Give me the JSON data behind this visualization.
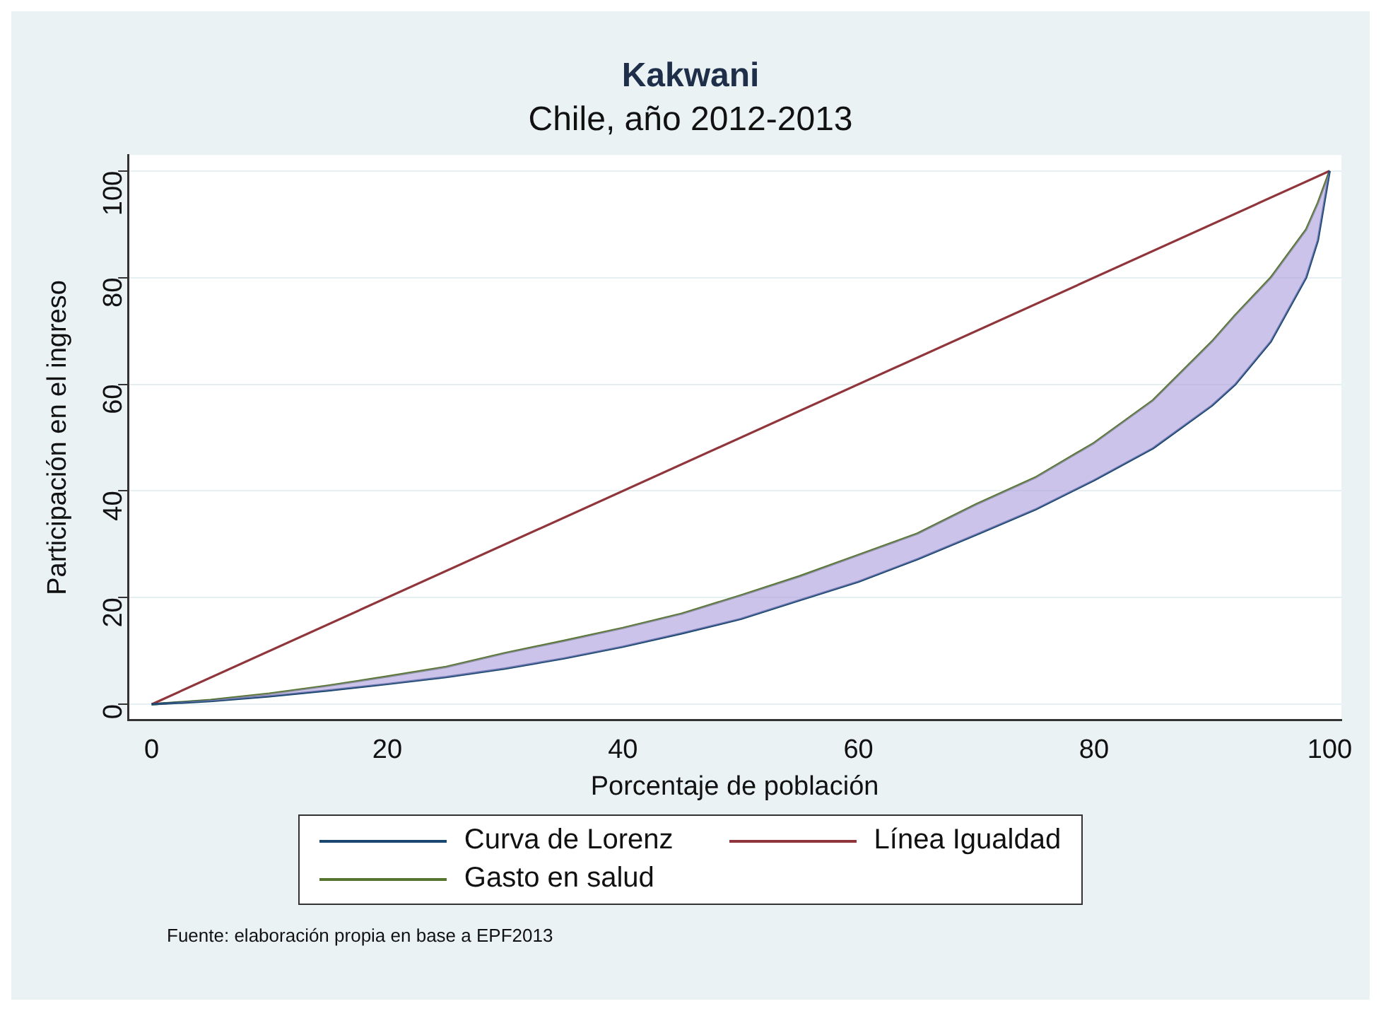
{
  "chart_data": {
    "type": "line",
    "title": "Kakwani",
    "subtitle": "Chile, año 2012-2013",
    "xlabel": "Porcentaje de población",
    "ylabel": "Participación en el ingreso",
    "xlim": [
      -2,
      101
    ],
    "xticks": [
      0,
      20,
      40,
      60,
      80,
      100
    ],
    "ylim": [
      -3,
      103
    ],
    "yticks": [
      0,
      20,
      40,
      60,
      80,
      100
    ],
    "grid": "y",
    "legend": "bottom",
    "marker": "none",
    "line_style": "solid",
    "series": [
      {
        "name": "Curva de Lorenz",
        "color": "#1a476f",
        "x": [
          0,
          5,
          10,
          15,
          20,
          25,
          30,
          35,
          40,
          45,
          50,
          55,
          60,
          65,
          70,
          75,
          80,
          85,
          90,
          92,
          95,
          98,
          99,
          100
        ],
        "values": [
          0,
          0.6,
          1.5,
          2.6,
          3.8,
          5.1,
          6.7,
          8.6,
          10.8,
          13.3,
          16,
          19.5,
          23,
          27.2,
          31.8,
          36.5,
          42,
          48,
          56,
          60,
          68,
          80,
          87,
          100
        ]
      },
      {
        "name": "Línea Igualdad",
        "color": "#90353b",
        "x": [
          0,
          100
        ],
        "values": [
          0,
          100
        ]
      },
      {
        "name": "Gasto en salud",
        "color": "#55752f",
        "x": [
          0,
          5,
          10,
          15,
          20,
          25,
          30,
          35,
          40,
          45,
          50,
          55,
          60,
          65,
          70,
          75,
          80,
          85,
          90,
          92,
          95,
          98,
          99,
          100
        ],
        "values": [
          0,
          0.8,
          2,
          3.5,
          5.2,
          7,
          9.6,
          11.9,
          14.3,
          17,
          20.4,
          24,
          28,
          32,
          37.5,
          42.5,
          49,
          57,
          68,
          73,
          80,
          89,
          94,
          100
        ],
        "lower": [
          0,
          0.6,
          1.5,
          2.6,
          3.8,
          5.1,
          6.7,
          8.6,
          10.8,
          13.3,
          16,
          19.5,
          23,
          27.2,
          31.8,
          36.5,
          42,
          48,
          56,
          60,
          68,
          80,
          87,
          100
        ],
        "upper": [
          0,
          0.8,
          2,
          3.5,
          5.2,
          7,
          9.6,
          11.9,
          14.3,
          17,
          20.4,
          24,
          28,
          32,
          37.5,
          42.5,
          49,
          57,
          68,
          73,
          80,
          89,
          94,
          100
        ]
      }
    ],
    "annotations": [
      "Fuente: elaboración propia en base a EPF2013"
    ]
  }
}
